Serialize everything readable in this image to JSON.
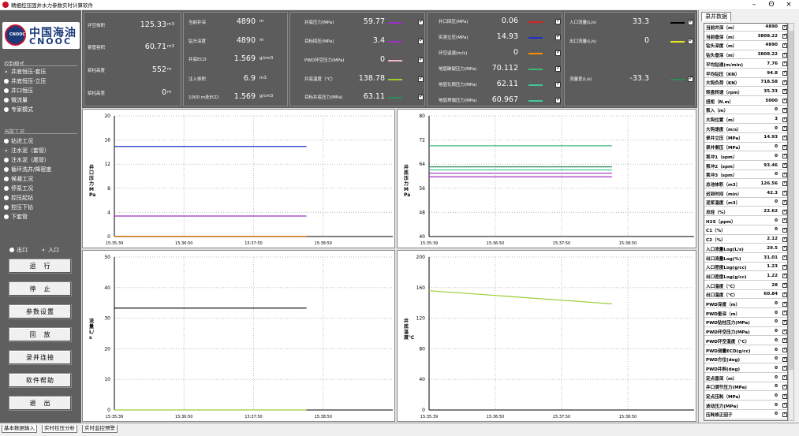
{
  "title": "精细控压固井水力参数实时计算软件",
  "window_controls": {
    "minimize": "–",
    "maximize": "ʘ",
    "close": "×"
  },
  "logo": {
    "cn": "中国海油",
    "en": "CNOOC",
    "badge": "CNOOC"
  },
  "left": {
    "group1": "控制模式",
    "modes": [
      "井底恒压-套压",
      "井底恒压-立压",
      "井口恒压",
      "微流量",
      "专家模式"
    ],
    "group2": "当前工况",
    "conditions": [
      "钻进工况",
      "注水泥（套管）",
      "注水泥（尾管）",
      "循环洗井/降密度",
      "候凝工况",
      "停泵工况",
      "控压起钻",
      "控压下钻",
      "下套管"
    ],
    "io": [
      "出口",
      "入口"
    ],
    "buttons": [
      "运　行",
      "停　止",
      "参数设置",
      "回　放",
      "录井连接",
      "软件帮助",
      "退　出"
    ]
  },
  "top": {
    "b1": [
      {
        "l": "环空体积",
        "v": "125.33",
        "u": "m3"
      },
      {
        "l": "套管容积",
        "v": "60.71",
        "u": "m3"
      },
      {
        "l": "浆柱高度",
        "v": "552",
        "u": "m"
      },
      {
        "l": "浆柱高差",
        "v": "0",
        "u": "m"
      }
    ],
    "b2": [
      {
        "l": "当前井深",
        "v": "4890",
        "u": "m"
      },
      {
        "l": "钻头深度",
        "v": "4890",
        "u": "m"
      },
      {
        "l": "井底ECD",
        "v": "1.569",
        "u": "g/cm3"
      },
      {
        "l": "注入体积",
        "v": "6.9",
        "u": "m3"
      },
      {
        "l": "1000 m处ECD",
        "v": "1.569",
        "u": "g/cm3"
      }
    ],
    "b3": [
      {
        "l": "井底压力(MPa)",
        "v": "59.77",
        "c": "#9b30c8"
      },
      {
        "l": "目标回压(MPa)",
        "v": "3.4",
        "c": "#9b30c8"
      },
      {
        "l": "PWD环空压力(MPa)",
        "v": "0",
        "c": "#f4b6c8"
      },
      {
        "l": "井底温度（℃）",
        "v": "138.78",
        "c": "#9acd32"
      },
      {
        "l": "目标井底压力(MPa)",
        "v": "63.11",
        "c": "#2e8b57"
      }
    ],
    "b4": [
      {
        "l": "井口回压(MPa)",
        "v": "0.06",
        "c": "#e02020"
      },
      {
        "l": "实测立压(MPa)",
        "v": "14.93",
        "c": "#1e2fc8"
      },
      {
        "l": "环空返速(m/s)",
        "v": "0",
        "c": "#ff8c00"
      },
      {
        "l": "地层破裂压力(MPa)",
        "v": "70.112",
        "c": "#3cb878"
      },
      {
        "l": "地层孔隙压力(MPa)",
        "v": "62.11",
        "c": "#40c8a0"
      },
      {
        "l": "地层坍塌压力(MPa)",
        "v": "60.967",
        "c": "#40c8a0"
      }
    ],
    "b5": [
      {
        "l": "入口流量(L/s)",
        "v": "33.3",
        "c": "#000000"
      },
      {
        "l": "出口流量(L/s)",
        "v": "0",
        "c": "#e8e820"
      },
      {
        "l": "流量差(L/s)",
        "v": "-33.3",
        "c": "#2e8b57"
      }
    ]
  },
  "charts": [
    {
      "ylabel": "井口压力MPa",
      "ylim": [
        0,
        20
      ],
      "yticks": [
        0,
        4,
        8,
        12,
        16,
        20
      ],
      "xticks": [
        "15:35:39",
        "15:36:50",
        "15:37:50",
        "15:38:50"
      ],
      "series": [
        {
          "color": "#1e2fc8",
          "y0": 14.93,
          "y1": 14.93
        },
        {
          "color": "#9b30c8",
          "y0": 3.4,
          "y1": 3.4
        },
        {
          "color": "#ff8c00",
          "y0": 0.06,
          "y1": 0.06
        }
      ]
    },
    {
      "ylabel": "井底压力MPa",
      "ylim": [
        40,
        80
      ],
      "yticks": [
        40,
        48,
        56,
        64,
        72,
        80
      ],
      "xticks": [
        "15:35:39",
        "15:36:50",
        "15:37:50",
        "15:38:50"
      ],
      "series": [
        {
          "color": "#3cb878",
          "y0": 70.1,
          "y1": 70.1
        },
        {
          "color": "#2e8b57",
          "y0": 63.1,
          "y1": 63.1
        },
        {
          "color": "#40c8a0",
          "y0": 62.1,
          "y1": 62.1
        },
        {
          "color": "#9b30c8",
          "y0": 61.0,
          "y1": 61.0
        },
        {
          "color": "#9b30c8",
          "y0": 59.8,
          "y1": 59.8
        }
      ]
    },
    {
      "ylabel": "流量L/s",
      "ylim": [
        0,
        50
      ],
      "yticks": [
        0,
        10,
        20,
        30,
        40,
        50
      ],
      "xticks": [
        "15:35:39",
        "15:36:50",
        "15:37:50",
        "15:38:50"
      ],
      "series": [
        {
          "color": "#000000",
          "y0": 33.3,
          "y1": 33.3
        },
        {
          "color": "#9acd32",
          "y0": 0,
          "y1": 0
        }
      ]
    },
    {
      "ylabel": "井底温度℃",
      "ylim": [
        0,
        200
      ],
      "yticks": [
        0,
        40,
        80,
        120,
        160,
        200
      ],
      "xticks": [
        "15:35:39",
        "15:36:50",
        "15:37:50",
        "15:38:50"
      ],
      "series": [
        {
          "color": "#9acd32",
          "y0": 156,
          "y1": 138.8
        }
      ]
    }
  ],
  "right": {
    "tab": "录井数据",
    "rows": [
      [
        "当前井深（m）",
        "4890"
      ],
      [
        "当前垂深（m）",
        "3808.22"
      ],
      [
        "钻头深度（m）",
        "4890"
      ],
      [
        "钻头垂深（m）",
        "3808.22"
      ],
      [
        "平均钻速(m/min)",
        "7.76"
      ],
      [
        "平均钻压（KN）",
        "94.8"
      ],
      [
        "大钩负荷（KN）",
        "718.58"
      ],
      [
        "转盘转速（rpm）",
        "35.33"
      ],
      [
        "扭矩（N.m）",
        "5000"
      ],
      [
        "泵入（m）",
        "0"
      ],
      [
        "大钩位置（m）",
        "3"
      ],
      [
        "大钩速度（m/s）",
        "0"
      ],
      [
        "录井立压（MPa）",
        "14.93"
      ],
      [
        "录井套压（MPa）",
        "0"
      ],
      [
        "泵冲1（spm）",
        "0"
      ],
      [
        "泵冲2（spm）",
        "93.46"
      ],
      [
        "泵冲3（spm）",
        "0"
      ],
      [
        "总池体积（m3）",
        "126.56"
      ],
      [
        "迟到时间（min）",
        "42.3"
      ],
      [
        "泥浆温度（m3）",
        "0"
      ],
      [
        "总烃（%）",
        "22.62"
      ],
      [
        "H2S（ppm）",
        "0"
      ],
      [
        "C1（%）",
        "0"
      ],
      [
        "C2（%）",
        "2.12"
      ],
      [
        "入口流量Log(L/s)",
        "29.5"
      ],
      [
        "出口流量Log(%)",
        "31.01"
      ],
      [
        "入口密度Log(g/cc)",
        "1.23"
      ],
      [
        "出口密度Log(g/cc)",
        "1.22"
      ],
      [
        "入口温度（℃）",
        "28"
      ],
      [
        "出口温度（℃）",
        "60.84"
      ],
      [
        "PWD深度（m）",
        "0"
      ],
      [
        "PWD垂深（m）",
        "0"
      ],
      [
        "PWD钻柱压力(MPa)",
        "0"
      ],
      [
        "PWD环空压力(MPa)",
        "0"
      ],
      [
        "PWD环空温度（℃）",
        "0"
      ],
      [
        "PWD测量ECD(g/cc)",
        "0"
      ],
      [
        "PWD方位(deg)",
        "0"
      ],
      [
        "PWD井斜(deg)",
        "0"
      ],
      [
        "定点垂深（m）",
        "0"
      ],
      [
        "井口调节压力(MPa)",
        "0"
      ],
      [
        "定点压耗（MPa）",
        "0"
      ],
      [
        "波动压力(MPa)",
        "0"
      ],
      [
        "压耗修正因子",
        "0"
      ]
    ]
  },
  "bottom": {
    "tabs": [
      "基本数据输入",
      "实时控压分析",
      "实时监控预警"
    ]
  }
}
